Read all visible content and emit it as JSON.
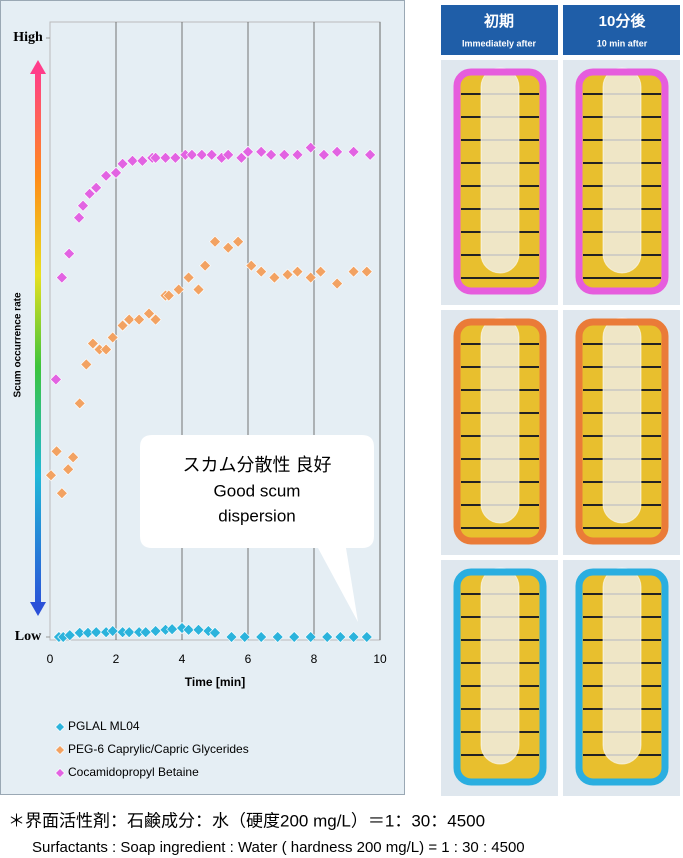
{
  "chart_data": {
    "type": "scatter",
    "ylabel": "Scum occurrence rate",
    "xlabel": "Time [min]",
    "xlim": [
      0,
      10
    ],
    "xticks": [
      0,
      2,
      4,
      6,
      8,
      10
    ],
    "ylim": [
      0,
      100
    ],
    "yticks": [
      {
        "value": 0,
        "label": "Low"
      },
      {
        "value": 100,
        "label": "High"
      }
    ],
    "grid": true,
    "legend": "bottom-left",
    "annotation": [
      "スカム分散性 良好",
      "Good scum",
      "dispersion"
    ],
    "series": [
      {
        "name": "PGLAL ML04",
        "color": "#2bb3dc",
        "x": [
          0.27,
          0.4,
          0.6,
          0.9,
          1.15,
          1.4,
          1.7,
          1.9,
          2.2,
          2.4,
          2.7,
          2.9,
          3.2,
          3.5,
          3.7,
          4.0,
          4.2,
          4.5,
          4.8,
          5.0,
          5.5,
          5.9,
          6.4,
          6.9,
          7.4,
          7.9,
          8.4,
          8.8,
          9.2,
          9.6
        ],
        "values": [
          0,
          0,
          0.3,
          0.7,
          0.7,
          0.8,
          0.8,
          1,
          0.8,
          0.8,
          0.8,
          0.8,
          1,
          1.2,
          1.3,
          1.5,
          1.2,
          1.2,
          1,
          0.7,
          0,
          0,
          0,
          0,
          0,
          0,
          0,
          0,
          0,
          0
        ]
      },
      {
        "name": "PEG-6 Caprylic/Capric Glycerides",
        "color": "#f2a262",
        "x": [
          0.03,
          0.2,
          0.36,
          0.55,
          0.7,
          0.9,
          1.1,
          1.3,
          1.5,
          1.7,
          1.9,
          2.2,
          2.4,
          2.7,
          3.0,
          3.2,
          3.5,
          3.6,
          3.9,
          4.2,
          4.5,
          4.7,
          5.0,
          5.4,
          5.7,
          6.1,
          6.4,
          6.8,
          7.2,
          7.5,
          7.9,
          8.2,
          8.7,
          9.2,
          9.6
        ],
        "values": [
          27,
          31,
          24,
          28,
          30,
          39,
          45.5,
          49,
          48,
          48,
          50,
          52,
          53,
          53,
          54,
          53,
          57,
          57,
          58,
          60,
          58,
          62,
          66,
          65,
          66,
          62,
          61,
          60,
          60.5,
          61,
          60,
          61,
          59,
          61,
          61
        ]
      },
      {
        "name": "Cocamidopropyl Betaine",
        "color": "#e263e2",
        "x": [
          0.18,
          0.36,
          0.58,
          0.88,
          1.0,
          1.2,
          1.4,
          1.7,
          2.0,
          2.2,
          2.5,
          2.8,
          3.1,
          3.2,
          3.5,
          3.8,
          4.1,
          4.3,
          4.6,
          4.9,
          5.2,
          5.4,
          5.8,
          6.0,
          6.4,
          6.7,
          7.1,
          7.5,
          7.9,
          8.3,
          8.7,
          9.2,
          9.7
        ],
        "values": [
          43,
          60,
          64,
          70,
          72,
          74,
          75,
          77,
          77.5,
          79,
          79.5,
          79.5,
          80,
          80,
          80,
          80,
          80.5,
          80.5,
          80.5,
          80.5,
          80,
          80.5,
          80,
          81,
          81,
          80.5,
          80.5,
          80.5,
          81.7,
          80.5,
          81,
          81,
          80.5
        ]
      }
    ]
  },
  "photo_panel": {
    "columns": [
      {
        "title": "初期",
        "subtitle": "Immediately after"
      },
      {
        "title": "10分後",
        "subtitle": "10 min after"
      }
    ]
  },
  "footnote": [
    "＊界面活性剤：石鹸成分：水（硬度200 mg/L）＝1：30：4500",
    "Surfactants : Soap ingredient : Water ( hardness 200 mg/L) = 1 : 30 : 4500"
  ]
}
